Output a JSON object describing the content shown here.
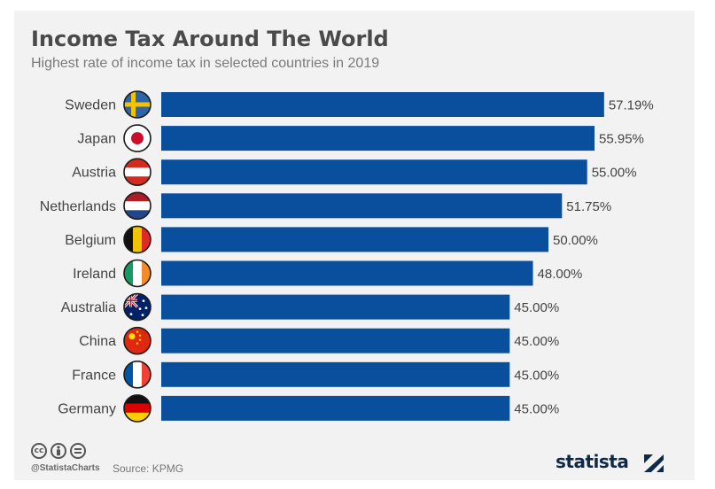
{
  "header": {
    "title": "Income Tax Around The World",
    "subtitle": "Highest rate of income tax in selected countries in 2019"
  },
  "chart_data": {
    "type": "bar",
    "orientation": "horizontal",
    "title": "Income Tax Around The World",
    "subtitle": "Highest rate of income tax in selected countries in 2019",
    "xlabel": "",
    "ylabel": "",
    "xlim": [
      0,
      60
    ],
    "categories": [
      "Sweden",
      "Japan",
      "Austria",
      "Netherlands",
      "Belgium",
      "Ireland",
      "Australia",
      "China",
      "France",
      "Germany"
    ],
    "values": [
      57.19,
      55.95,
      55.0,
      51.75,
      50.0,
      48.0,
      45.0,
      45.0,
      45.0,
      45.0
    ],
    "value_labels": [
      "57.19%",
      "55.95%",
      "55.00%",
      "51.75%",
      "50.00%",
      "48.00%",
      "45.00%",
      "45.00%",
      "45.00%",
      "45.00%"
    ],
    "flags": [
      "sweden-flag",
      "japan-flag",
      "austria-flag",
      "netherlands-flag",
      "belgium-flag",
      "ireland-flag",
      "australia-flag",
      "china-flag",
      "france-flag",
      "germany-flag"
    ],
    "bar_color": "#0a4f9e"
  },
  "footer": {
    "license_icons": [
      "cc-icon",
      "attribution-icon",
      "no-derivatives-icon"
    ],
    "handle": "@StatistaCharts",
    "source": "Source: KPMG",
    "brand": "statista"
  },
  "colors": {
    "background": "#f2f2f2",
    "bar": "#0a4f9e",
    "title": "#4a4a4a",
    "brand": "#0e2a47"
  }
}
